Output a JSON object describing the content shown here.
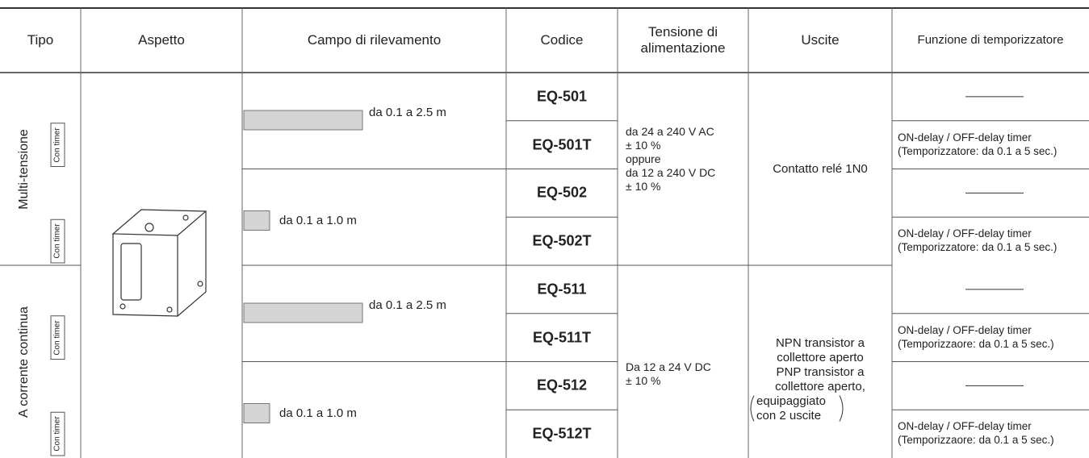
{
  "header": {
    "columns": [
      "Tipo",
      "Aspetto",
      "Campo di rilevamento",
      "Codice",
      "Tensione di alimentazione",
      "Uscite",
      "Funzione di temporizzatore"
    ]
  },
  "groups": [
    {
      "tipo": "Multi-tensione",
      "tensione": [
        "da 24 a 240 V AC",
        "± 10 %",
        "oppure",
        "da 12 a 240 V DC",
        "± 10 %"
      ],
      "uscite": [
        "Contatto relé 1N0"
      ],
      "ranges": [
        {
          "range": "da 0.1 a 2.5 m",
          "codes": [
            {
              "code": "EQ-501"
            },
            {
              "code": "EQ-501T",
              "timer_label": "Con timer",
              "function": [
                "ON-delay / OFF-delay timer",
                "(Temporizzatore: da 0.1 a 5 sec.)"
              ]
            }
          ]
        },
        {
          "range": "da 0.1 a 1.0 m",
          "codes": [
            {
              "code": "EQ-502"
            },
            {
              "code": "EQ-502T",
              "timer_label": "Con timer",
              "function": [
                "ON-delay / OFF-delay timer",
                "(Temporizzatore: da 0.1 a 5 sec.)"
              ]
            }
          ]
        }
      ]
    },
    {
      "tipo": "A corrente continua",
      "tensione": [
        "Da 12 a 24 V DC",
        "± 10 %"
      ],
      "uscite": [
        "NPN transistor a",
        "collettore aperto",
        "PNP transistor a",
        "collettore aperto,",
        "equipaggiato",
        "con 2 uscite"
      ],
      "ranges": [
        {
          "range": "da 0.1 a 2.5 m",
          "codes": [
            {
              "code": "EQ-511"
            },
            {
              "code": "EQ-511T",
              "timer_label": "Con timer",
              "function": [
                "ON-delay / OFF-delay timer",
                "(Temporizzaore: da 0.1 a 5 sec.)"
              ]
            }
          ]
        },
        {
          "range": "da 0.1 a 1.0 m",
          "codes": [
            {
              "code": "EQ-512"
            },
            {
              "code": "EQ-512T",
              "timer_label": "Con timer",
              "function": [
                "ON-delay / OFF-delay timer",
                "(Temporizzaore: da 0.1 a 5 sec.)"
              ]
            }
          ]
        }
      ]
    }
  ]
}
